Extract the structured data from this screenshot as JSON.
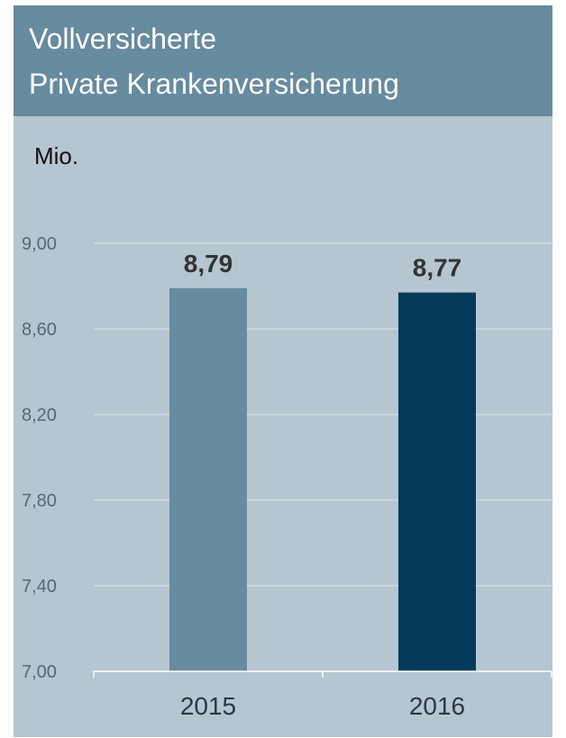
{
  "header": {
    "title_line1": "Vollversicherte",
    "title_line2": "Private Krankenversicherung"
  },
  "chart_data": {
    "type": "bar",
    "title": "Vollversicherte Private Krankenversicherung",
    "ylabel": "Mio.",
    "xlabel": "",
    "categories": [
      "2015",
      "2016"
    ],
    "values": [
      8.79,
      8.77
    ],
    "value_labels": [
      "8,79",
      "8,77"
    ],
    "ylim": [
      7.0,
      9.0
    ],
    "yticks": [
      7.0,
      7.4,
      7.8,
      8.2,
      8.6,
      9.0
    ],
    "ytick_labels": [
      "7,00",
      "7,40",
      "7,80",
      "8,20",
      "8,60",
      "9,00"
    ],
    "grid": true,
    "legend": "none",
    "bar_colors": [
      "#678b9f",
      "#033a59"
    ]
  },
  "colors": {
    "panel_bg": "#b6c6d0",
    "header_bg": "#678b9f",
    "gridline": "#dfe6ea"
  }
}
